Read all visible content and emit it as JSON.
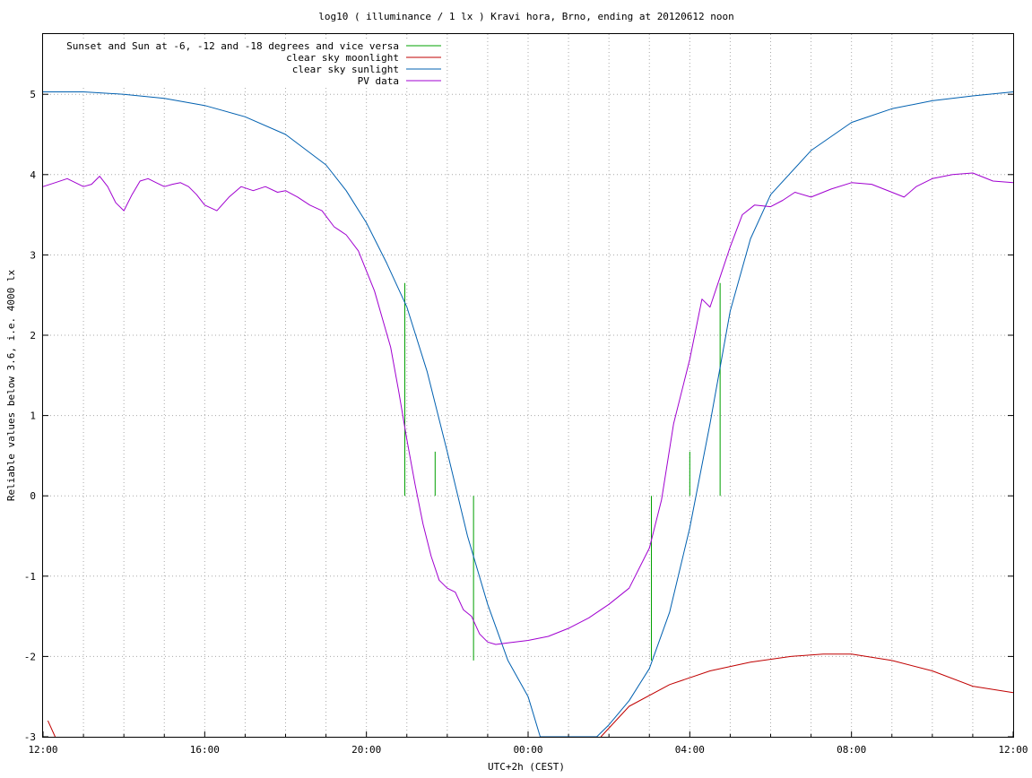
{
  "chart_data": {
    "type": "line",
    "title": "log10 ( illuminance / 1 lx ) Kravi hora, Brno, ending at 20120612 noon",
    "xlabel": "UTC+2h (CEST)",
    "ylabel": "Reliable values below 3.6, i.e. 4000 lx",
    "x_unit": "hours since 12:00 (2012-06-11)",
    "xlim": [
      0,
      24
    ],
    "ylim": [
      -3,
      5.75
    ],
    "x_tick_labels": [
      "12:00",
      "16:00",
      "20:00",
      "00:00",
      "04:00",
      "08:00",
      "12:00"
    ],
    "y_tick_labels": [
      "-3",
      "-2",
      "-1",
      "0",
      "1",
      "2",
      "3",
      "4",
      "5"
    ],
    "grid": true,
    "legend_position": "top-left",
    "series": [
      {
        "name": "Sunset and Sun at -6, -12 and -18 degrees and vice versa",
        "color": "#00a000",
        "kind": "vertical-markers",
        "markers": [
          {
            "x": 8.95,
            "y0": 0,
            "y1": 2.65
          },
          {
            "x": 9.7,
            "y0": 0,
            "y1": 0.55
          },
          {
            "x": 10.65,
            "y0": -2.05,
            "y1": 0
          },
          {
            "x": 15.05,
            "y0": -2.05,
            "y1": 0
          },
          {
            "x": 16.0,
            "y0": 0,
            "y1": 0.55
          },
          {
            "x": 16.75,
            "y0": 0,
            "y1": 2.65
          }
        ]
      },
      {
        "name": "clear sky moonlight",
        "color": "#c00000",
        "x": [
          0.12,
          0.3,
          13.8,
          14.5,
          15.5,
          16.5,
          17.5,
          18.5,
          19.3,
          20,
          21,
          22,
          23,
          24
        ],
        "y": [
          -2.8,
          -3.0,
          -3.0,
          -2.62,
          -2.35,
          -2.18,
          -2.07,
          -2.0,
          -1.97,
          -1.97,
          -2.05,
          -2.18,
          -2.37,
          -2.45
        ]
      },
      {
        "name": "clear sky sunlight",
        "color": "#0060b0",
        "x": [
          0,
          1,
          2,
          3,
          4,
          5,
          6,
          7,
          7.5,
          8,
          8.5,
          9,
          9.5,
          10,
          10.5,
          11,
          11.5,
          12,
          12.3,
          13.7,
          14,
          14.5,
          15,
          15.5,
          16,
          16.5,
          17,
          17.5,
          18,
          19,
          20,
          21,
          22,
          23,
          24
        ],
        "y": [
          5.03,
          5.03,
          5.0,
          4.95,
          4.86,
          4.72,
          4.5,
          4.12,
          3.8,
          3.4,
          2.9,
          2.35,
          1.55,
          0.55,
          -0.5,
          -1.35,
          -2.05,
          -2.5,
          -3.0,
          -3.0,
          -2.85,
          -2.55,
          -2.15,
          -1.45,
          -0.4,
          0.9,
          2.3,
          3.2,
          3.75,
          4.3,
          4.65,
          4.82,
          4.92,
          4.98,
          5.03
        ]
      },
      {
        "name": "PV data",
        "color": "#a000d0",
        "x": [
          0,
          0.3,
          0.6,
          1,
          1.2,
          1.4,
          1.6,
          1.8,
          2,
          2.2,
          2.4,
          2.6,
          2.8,
          3,
          3.2,
          3.4,
          3.6,
          3.8,
          4,
          4.3,
          4.6,
          4.9,
          5.2,
          5.5,
          5.8,
          6,
          6.3,
          6.6,
          6.9,
          7.2,
          7.5,
          7.8,
          8,
          8.2,
          8.4,
          8.6,
          8.8,
          9,
          9.2,
          9.4,
          9.6,
          9.8,
          10,
          10.2,
          10.4,
          10.6,
          10.8,
          11,
          11.2,
          11.5,
          12,
          12.5,
          13,
          13.5,
          14,
          14.5,
          15,
          15.3,
          15.6,
          16,
          16.3,
          16.5,
          16.8,
          17,
          17.3,
          17.6,
          18,
          18.3,
          18.6,
          19,
          19.5,
          20,
          20.5,
          21,
          21.3,
          21.6,
          22,
          22.5,
          23,
          23.5,
          24
        ],
        "y": [
          3.85,
          3.9,
          3.95,
          3.85,
          3.88,
          3.98,
          3.85,
          3.65,
          3.55,
          3.75,
          3.92,
          3.95,
          3.9,
          3.85,
          3.88,
          3.9,
          3.85,
          3.75,
          3.62,
          3.55,
          3.72,
          3.85,
          3.8,
          3.85,
          3.78,
          3.8,
          3.72,
          3.62,
          3.55,
          3.35,
          3.25,
          3.05,
          2.8,
          2.55,
          2.2,
          1.85,
          1.3,
          0.7,
          0.15,
          -0.35,
          -0.75,
          -1.05,
          -1.15,
          -1.2,
          -1.42,
          -1.5,
          -1.72,
          -1.82,
          -1.85,
          -1.83,
          -1.8,
          -1.75,
          -1.65,
          -1.52,
          -1.35,
          -1.15,
          -0.65,
          -0.05,
          0.9,
          1.7,
          2.45,
          2.35,
          2.8,
          3.1,
          3.5,
          3.62,
          3.6,
          3.68,
          3.78,
          3.72,
          3.82,
          3.9,
          3.88,
          3.78,
          3.72,
          3.85,
          3.95,
          4.0,
          4.02,
          3.92,
          3.9
        ]
      }
    ]
  }
}
